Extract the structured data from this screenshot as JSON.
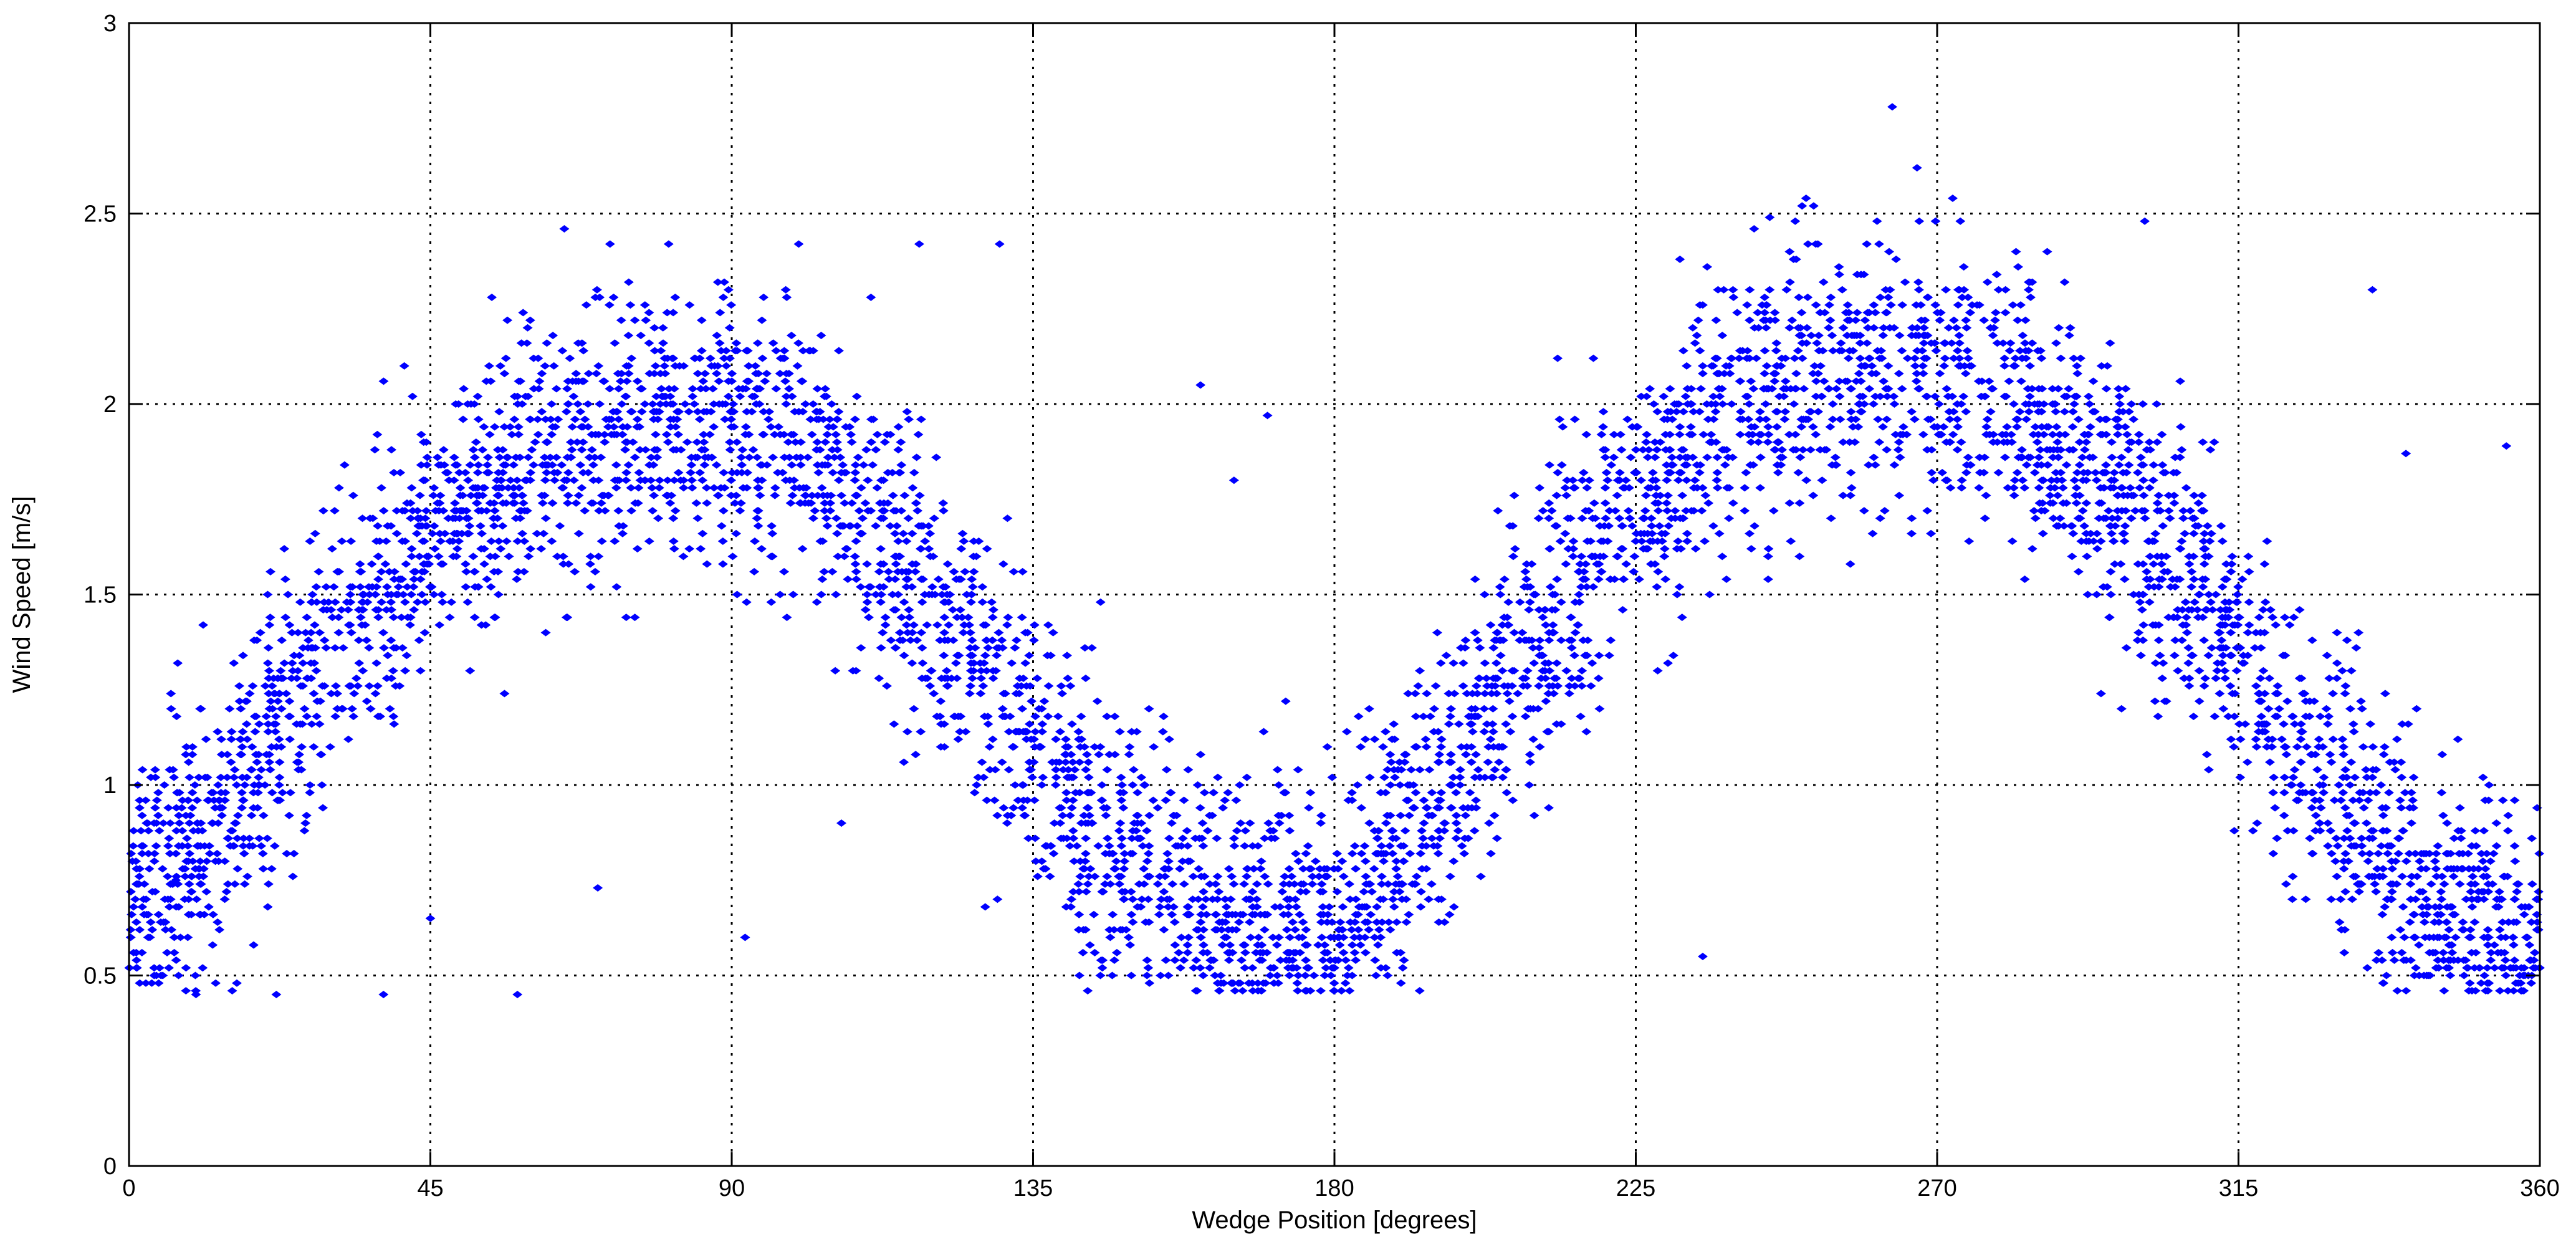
{
  "chart_data": {
    "type": "scatter",
    "title": "",
    "xlabel": "Wedge Position [degrees]",
    "ylabel": "Wind Speed [m/s]",
    "xlim": [
      0,
      360
    ],
    "ylim": [
      0,
      3
    ],
    "xticks": [
      0,
      45,
      90,
      135,
      180,
      225,
      270,
      315,
      360
    ],
    "yticks": [
      0,
      0.5,
      1,
      1.5,
      2,
      2.5,
      3
    ],
    "xtick_labels": [
      "0",
      "45",
      "90",
      "135",
      "180",
      "225",
      "270",
      "315",
      "360"
    ],
    "ytick_labels": [
      "0",
      "0.5",
      "1",
      "1.5",
      "2",
      "2.5",
      "3"
    ],
    "grid": true,
    "marker": "dot",
    "marker_color": "#0000ff",
    "series": [
      {
        "trend_x": [
          0,
          15,
          30,
          45,
          60,
          75,
          90,
          105,
          120,
          135,
          150,
          165,
          180,
          195,
          210,
          225,
          240,
          255,
          270,
          285,
          300,
          315,
          330,
          345,
          360
        ],
        "trend_y": [
          0.7,
          0.95,
          1.35,
          1.65,
          1.85,
          1.95,
          1.95,
          1.8,
          1.5,
          1.1,
          0.78,
          0.65,
          0.65,
          0.95,
          1.4,
          1.75,
          2.0,
          2.1,
          2.08,
          1.95,
          1.7,
          1.35,
          0.95,
          0.65,
          0.6
        ],
        "spread": 0.18,
        "floor": 0.45,
        "outliers": [
          [
            7,
            0.75
          ],
          [
            10,
            0.45
          ],
          [
            22,
            0.45
          ],
          [
            38,
            0.45
          ],
          [
            58,
            0.45
          ],
          [
            70,
            0.73
          ],
          [
            100,
            2.42
          ],
          [
            118,
            2.42
          ],
          [
            130,
            2.42
          ],
          [
            65,
            2.46
          ],
          [
            160,
            2.05
          ],
          [
            165,
            1.8
          ],
          [
            170,
            1.97
          ],
          [
            235,
            0.55
          ],
          [
            245,
            2.49
          ],
          [
            267,
            2.62
          ],
          [
            301,
            2.48
          ],
          [
            335,
            2.3
          ],
          [
            340,
            1.87
          ],
          [
            355,
            1.89
          ],
          [
            92,
            0.6
          ],
          [
            45,
            0.65
          ]
        ]
      }
    ]
  }
}
